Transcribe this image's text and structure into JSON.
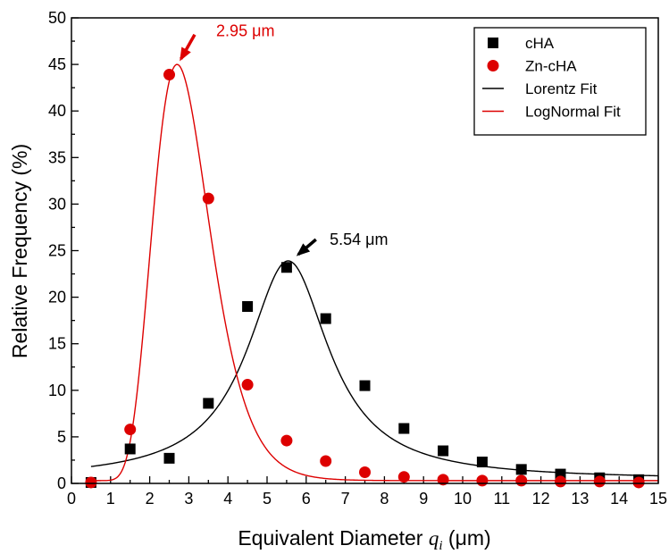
{
  "chart_data": {
    "type": "scatter",
    "xlabel_prefix": "Equivalent Diameter ",
    "xlabel_var": "q",
    "xlabel_sub": "i",
    "xlabel_unit": " (μm)",
    "ylabel": "Relative Frequency (%)",
    "xlim": [
      0,
      15
    ],
    "ylim": [
      0,
      50
    ],
    "xticks": [
      "0",
      "0.5",
      "1",
      "1.5",
      "2",
      "2.5",
      "3",
      "3.5",
      "4",
      "4.5",
      "5",
      "5.5",
      "6",
      "6.5",
      "7",
      "7.5",
      "8",
      "8.5",
      "9",
      "9.5",
      "10",
      "10.5",
      "11",
      "11.5",
      "12",
      "12.5",
      "13",
      "13.5",
      "14",
      "14.5",
      "15"
    ],
    "xtick_labels": [
      "0",
      "1",
      "2",
      "3",
      "4",
      "5",
      "6",
      "7",
      "8",
      "9",
      "10",
      "11",
      "12",
      "13",
      "14",
      "15"
    ],
    "ytick_labels": [
      "0",
      "5",
      "10",
      "15",
      "20",
      "25",
      "30",
      "35",
      "40",
      "45",
      "50"
    ],
    "legend_position": "top-right",
    "series": [
      {
        "name": "cHA",
        "kind": "points",
        "marker": "square",
        "color": "#000000",
        "x": [
          0.5,
          1.5,
          2.5,
          3.5,
          4.5,
          5.5,
          6.5,
          7.5,
          8.5,
          9.5,
          10.5,
          11.5,
          12.5,
          13.5,
          14.5
        ],
        "y": [
          0.1,
          3.7,
          2.7,
          8.6,
          19.0,
          23.2,
          17.7,
          10.5,
          5.9,
          3.5,
          2.3,
          1.5,
          1.0,
          0.6,
          0.4
        ]
      },
      {
        "name": "Zn-cHA",
        "kind": "points",
        "marker": "circle",
        "color": "#dd0000",
        "x": [
          0.5,
          1.5,
          2.5,
          3.5,
          4.5,
          5.5,
          6.5,
          7.5,
          8.5,
          9.5,
          10.5,
          11.5,
          12.5,
          13.5,
          14.5
        ],
        "y": [
          0.1,
          5.8,
          43.9,
          30.6,
          10.6,
          4.6,
          2.4,
          1.2,
          0.7,
          0.4,
          0.3,
          0.3,
          0.2,
          0.2,
          0.1
        ]
      },
      {
        "name": "Lorentz Fit",
        "kind": "line",
        "color": "#000000",
        "model": "lorentz",
        "params": {
          "y0": 0.4,
          "xc": 5.54,
          "w": 2.55,
          "h": 23.5
        },
        "x_range": [
          0.5,
          15
        ]
      },
      {
        "name": "LogNormal Fit",
        "kind": "line",
        "color": "#dd0000",
        "model": "lognormal",
        "params": {
          "y0": 0.3,
          "xm": 2.7,
          "sigma": 0.27,
          "h": 44.7
        },
        "x_range": [
          0.5,
          15
        ]
      }
    ],
    "annotations": [
      {
        "text": "2.95 μm",
        "color": "#dd0000",
        "x": 3.7,
        "y": 48.6,
        "arrow_from": [
          3.15,
          48.2
        ],
        "arrow_to": [
          2.8,
          45.6
        ]
      },
      {
        "text": "5.54 μm",
        "color": "#000000",
        "x": 6.6,
        "y": 26.2,
        "arrow_from": [
          6.25,
          26.2
        ],
        "arrow_to": [
          5.8,
          24.6
        ]
      }
    ]
  }
}
